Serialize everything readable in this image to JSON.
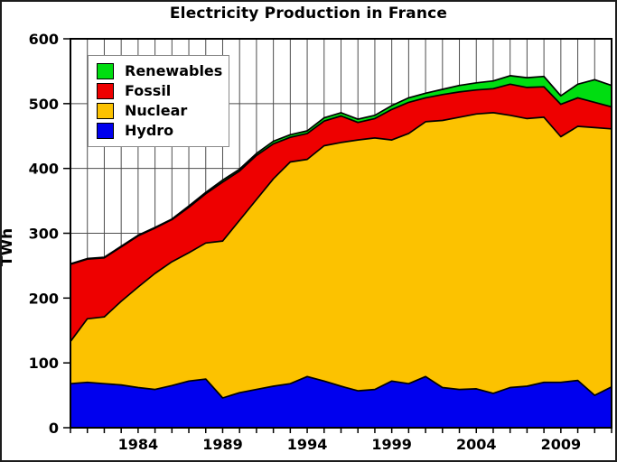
{
  "chart_data": {
    "type": "area",
    "stacked": true,
    "title": "Electricity Production in France",
    "xlabel": "",
    "ylabel": "TWh",
    "x_start": 1980,
    "x_end": 2012,
    "ylim": [
      0,
      600
    ],
    "yticks": [
      0,
      100,
      200,
      300,
      400,
      500,
      600
    ],
    "xtick_labels": [
      1984,
      1989,
      1994,
      1999,
      2004,
      2009
    ],
    "grid": true,
    "grid_every_year": true,
    "legend_position": "upper-left",
    "background": "#ffffff",
    "grid_color": "#4d4d4d",
    "outline_color": "#000000",
    "years": [
      1980,
      1981,
      1982,
      1983,
      1984,
      1985,
      1986,
      1987,
      1988,
      1989,
      1990,
      1991,
      1992,
      1993,
      1994,
      1995,
      1996,
      1997,
      1998,
      1999,
      2000,
      2001,
      2002,
      2003,
      2004,
      2005,
      2006,
      2007,
      2008,
      2009,
      2010,
      2011,
      2012
    ],
    "series": [
      {
        "name": "Hydro",
        "color": "#0000ee",
        "values": [
          68,
          70,
          68,
          66,
          62,
          59,
          65,
          72,
          75,
          46,
          54,
          59,
          64,
          68,
          79,
          72,
          64,
          57,
          59,
          72,
          68,
          79,
          62,
          59,
          60,
          53,
          62,
          64,
          70,
          70,
          73,
          50,
          63
        ]
      },
      {
        "name": "Nuclear",
        "color": "#fcc200",
        "values": [
          65,
          98,
          103,
          129,
          155,
          179,
          191,
          198,
          210,
          242,
          266,
          293,
          320,
          342,
          335,
          363,
          376,
          387,
          388,
          372,
          386,
          393,
          412,
          420,
          424,
          433,
          420,
          413,
          409,
          379,
          392,
          413,
          398
        ]
      },
      {
        "name": "Fossil",
        "color": "#ee0000",
        "values": [
          119,
          92,
          91,
          84,
          79,
          70,
          65,
          70,
          76,
          91,
          76,
          68,
          54,
          38,
          40,
          38,
          41,
          27,
          30,
          47,
          48,
          37,
          40,
          39,
          37,
          37,
          48,
          48,
          47,
          50,
          44,
          39,
          34
        ]
      },
      {
        "name": "Renewables",
        "color": "#00dd11",
        "values": [
          1,
          1,
          1,
          1,
          1,
          1,
          1,
          2,
          2,
          3,
          3,
          3,
          4,
          4,
          4,
          5,
          5,
          5,
          5,
          6,
          7,
          7,
          8,
          10,
          11,
          12,
          13,
          15,
          16,
          13,
          21,
          35,
          33
        ]
      }
    ],
    "legend": [
      {
        "label": "Renewables",
        "color": "#00dd11"
      },
      {
        "label": "Fossil",
        "color": "#ee0000"
      },
      {
        "label": "Nuclear",
        "color": "#fcc200"
      },
      {
        "label": "Hydro",
        "color": "#0000ee"
      }
    ]
  }
}
